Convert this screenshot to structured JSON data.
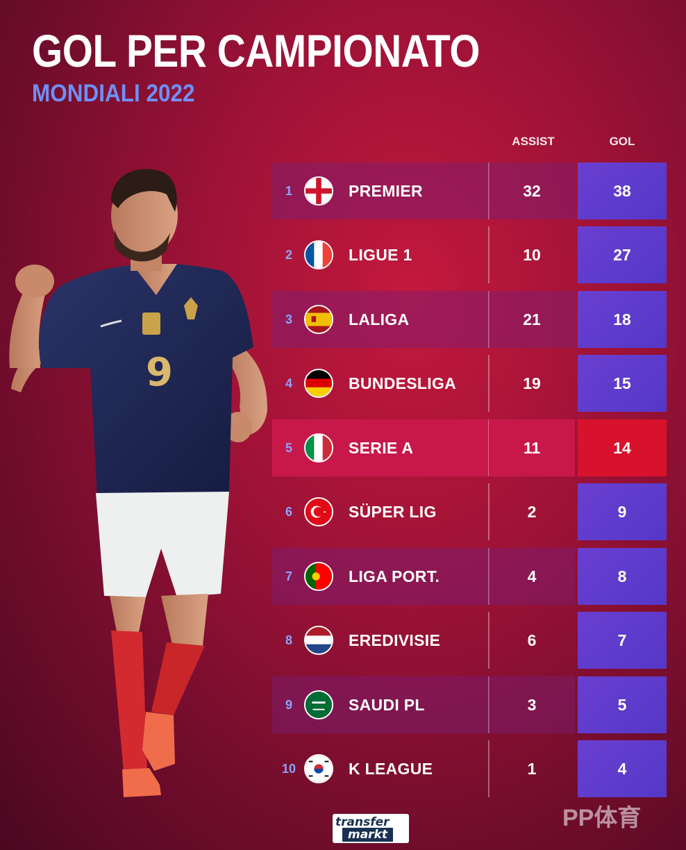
{
  "header": {
    "title": "GOL PER CAMPIONATO",
    "subtitle": "MONDIALI 2022"
  },
  "columns": {
    "assist": "ASSIST",
    "gol": "GOL"
  },
  "rows": [
    {
      "rank": "1",
      "league": "PREMIER",
      "flag": "england-flag-icon",
      "assist": "32",
      "gol": "38"
    },
    {
      "rank": "2",
      "league": "LIGUE 1",
      "flag": "france-flag-icon",
      "assist": "10",
      "gol": "27"
    },
    {
      "rank": "3",
      "league": "LALIGA",
      "flag": "spain-flag-icon",
      "assist": "21",
      "gol": "18"
    },
    {
      "rank": "4",
      "league": "BUNDESLIGA",
      "flag": "germany-flag-icon",
      "assist": "19",
      "gol": "15"
    },
    {
      "rank": "5",
      "league": "SERIE A",
      "flag": "italy-flag-icon",
      "assist": "11",
      "gol": "14"
    },
    {
      "rank": "6",
      "league": "SÜPER LIG",
      "flag": "turkey-flag-icon",
      "assist": "2",
      "gol": "9"
    },
    {
      "rank": "7",
      "league": "LIGA PORT.",
      "flag": "portugal-flag-icon",
      "assist": "4",
      "gol": "8"
    },
    {
      "rank": "8",
      "league": "EREDIVISIE",
      "flag": "netherlands-flag-icon",
      "assist": "6",
      "gol": "7"
    },
    {
      "rank": "9",
      "league": "SAUDI PL",
      "flag": "saudi-arabia-flag-icon",
      "assist": "3",
      "gol": "5"
    },
    {
      "rank": "10",
      "league": "K LEAGUE",
      "flag": "south-korea-flag-icon",
      "assist": "1",
      "gol": "4"
    }
  ],
  "highlight_rank": "5",
  "player": {
    "shirt_number": "9"
  },
  "footer": {
    "logo_line1": "transfer",
    "logo_line2": "markt",
    "watermark": "PP体育"
  },
  "colors": {
    "background": "#9c1236",
    "subtitle": "#6f8ff5",
    "gol_cell": "#5a3acb",
    "highlight": "#d8122c"
  }
}
